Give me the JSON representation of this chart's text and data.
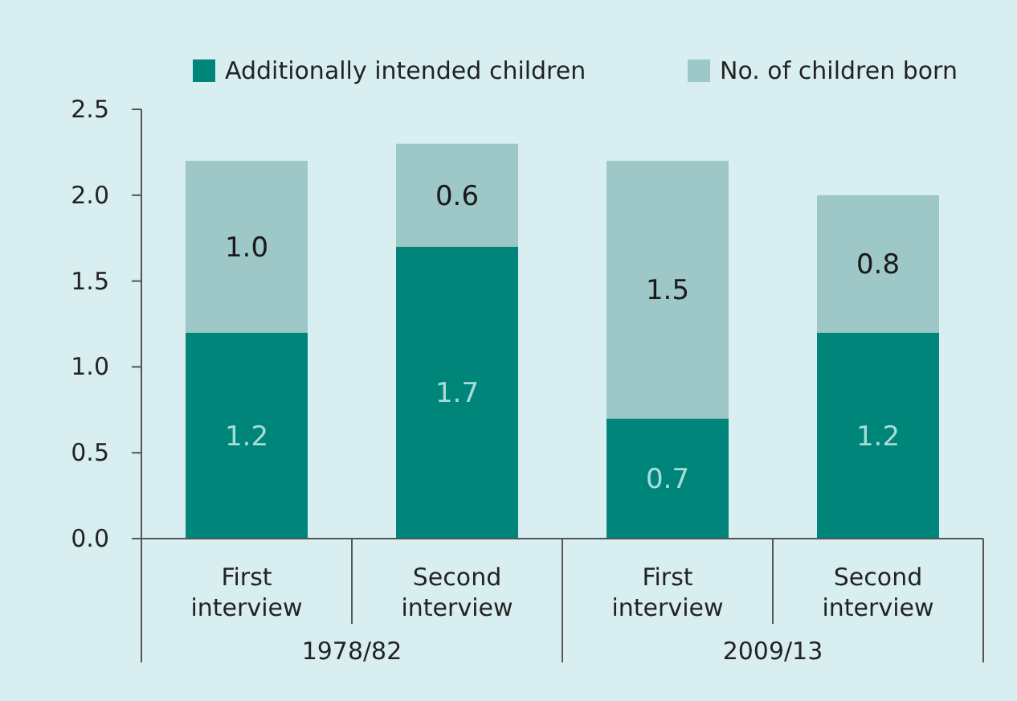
{
  "chart_data": {
    "type": "bar",
    "stacked": true,
    "categories": [
      "First interview",
      "Second interview",
      "First interview",
      "Second interview"
    ],
    "series": [
      {
        "name": "Additionally intended children",
        "color": "#00857a",
        "values": [
          1.2,
          1.7,
          0.7,
          1.2
        ],
        "value_labels": [
          "1.2",
          "1.7",
          "0.7",
          "1.2"
        ]
      },
      {
        "name": "No. of children born",
        "color": "#9dc8c7",
        "values": [
          1.0,
          0.6,
          1.5,
          0.8
        ],
        "value_labels": [
          "1.0",
          "0.6",
          "1.5",
          "0.8"
        ]
      }
    ],
    "ylim": [
      0,
      2.5
    ],
    "yticks": [
      {
        "value": 0,
        "label": "0.0"
      },
      {
        "value": 0.5,
        "label": "0.5"
      },
      {
        "value": 1,
        "label": "1.0"
      },
      {
        "value": 1.5,
        "label": "1.5"
      },
      {
        "value": 2,
        "label": "2.0"
      },
      {
        "value": 2.5,
        "label": "2.5"
      }
    ],
    "legend": "top",
    "grid": false,
    "annotations": [
      "1978/82",
      "2009/13"
    ]
  }
}
